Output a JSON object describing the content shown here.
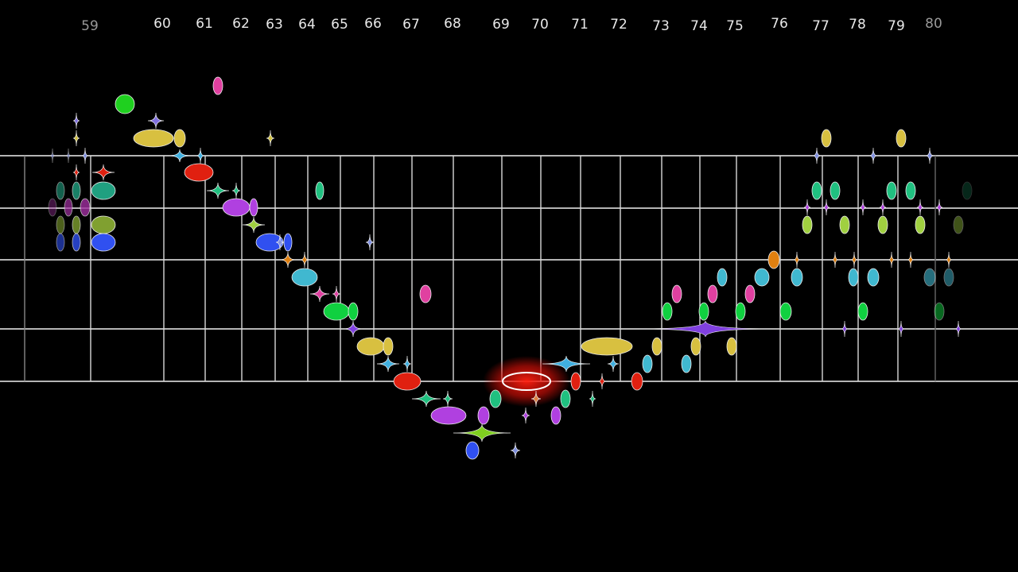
{
  "measures": [
    "59",
    "60",
    "61",
    "62",
    "63",
    "64",
    "65",
    "66",
    "67",
    "68",
    "69",
    "70",
    "71",
    "72",
    "73",
    "74",
    "75",
    "76",
    "77",
    "78",
    "79",
    "80"
  ]
}
